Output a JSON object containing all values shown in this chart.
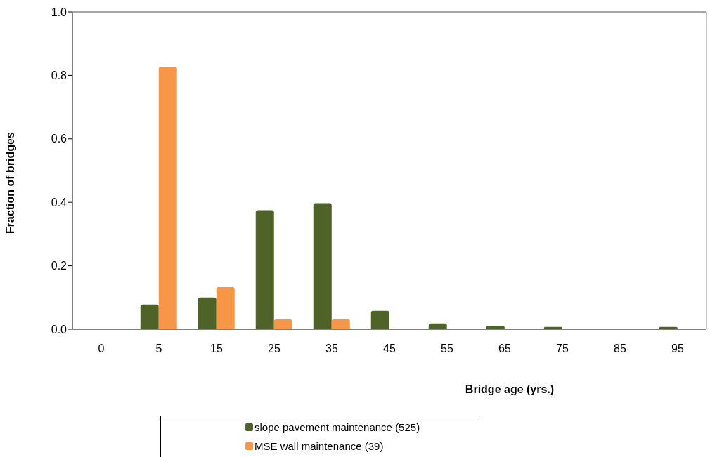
{
  "chart_data": {
    "type": "bar",
    "xlabel": "Bridge age (yrs.)",
    "ylabel": "Fraction of bridges",
    "categories": [
      "0",
      "5",
      "15",
      "25",
      "35",
      "45",
      "55",
      "65",
      "75",
      "85",
      "95"
    ],
    "series": [
      {
        "name": "slope pavement maintenance  (525)",
        "color": "#4f6228",
        "values": [
          0,
          0.078,
          0.1,
          0.375,
          0.397,
          0.058,
          0.018,
          0.011,
          0.007,
          0,
          0.007
        ]
      },
      {
        "name": "MSE wall maintenance  (39)",
        "color": "#f79646",
        "values": [
          0,
          0.827,
          0.133,
          0.031,
          0.031,
          0,
          0,
          0,
          0,
          0,
          0
        ]
      }
    ],
    "ylim": [
      0,
      1
    ],
    "yticks": [
      {
        "value": 0,
        "label": "0.0"
      },
      {
        "value": 0.2,
        "label": "0.2"
      },
      {
        "value": 0.4,
        "label": "0.4"
      },
      {
        "value": 0.6,
        "label": "0.6"
      },
      {
        "value": 0.8,
        "label": "0.8"
      },
      {
        "value": 1,
        "label": "1.0"
      }
    ],
    "grid": false,
    "legend": "bottom"
  }
}
